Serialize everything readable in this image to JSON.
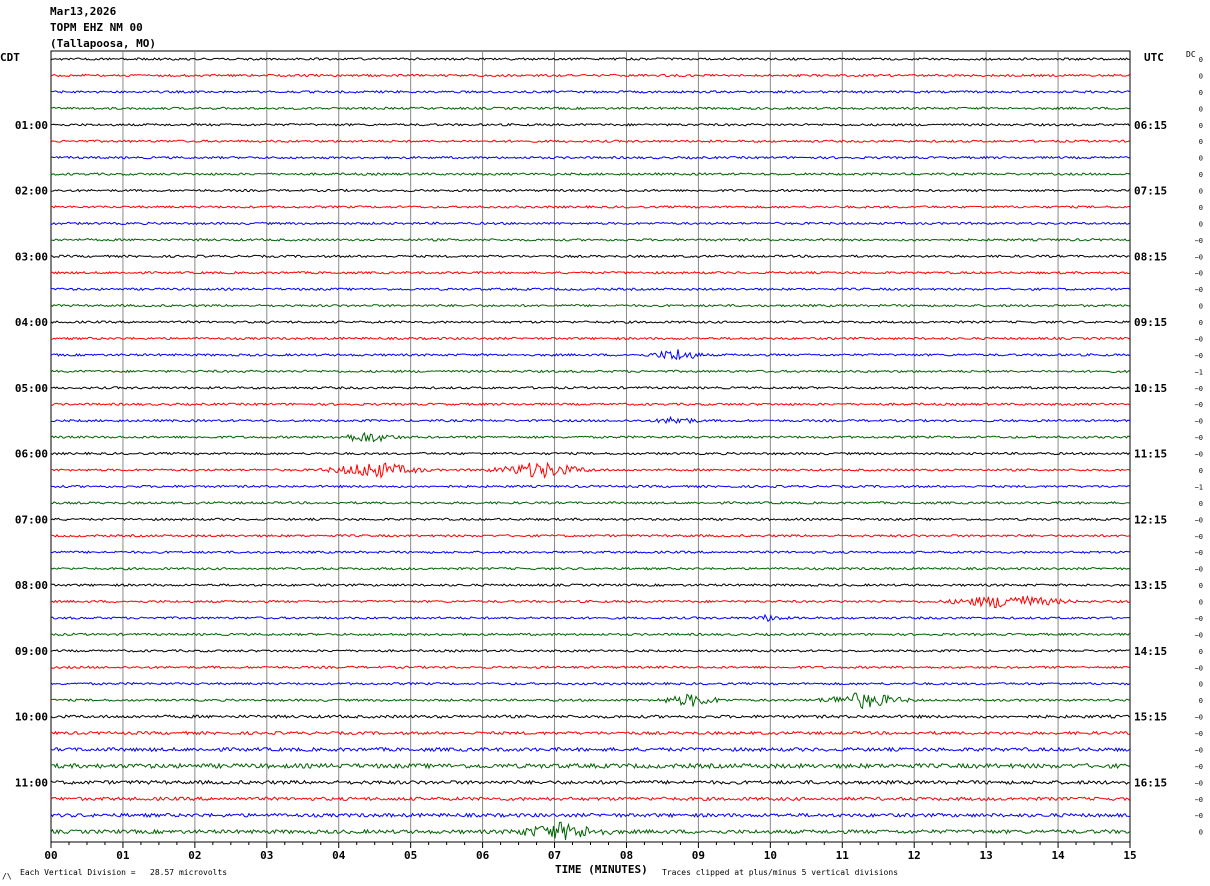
{
  "header": {
    "date": "Mar13,2026",
    "station": "TOPM EHZ NM 00",
    "location": "(Tallapoosa, MO)"
  },
  "left_tz": "CDT",
  "right_tz": "UTC",
  "dc_label": "DC",
  "footer": {
    "scale": "Each Vertical Division =   28.57 microvolts",
    "clip": "Traces clipped at plus/minus 5 vertical divisions",
    "corner": "/\\"
  },
  "colors": {
    "black": "#000000",
    "red": "#ff0000",
    "blue": "#0000ff",
    "green": "#006400"
  },
  "chart_data": {
    "type": "line",
    "title": "TOPM EHZ NM 00",
    "xlabel": "TIME (MINUTES)",
    "ylabel": "",
    "x_ticks": [
      "00",
      "01",
      "02",
      "03",
      "04",
      "05",
      "06",
      "07",
      "08",
      "09",
      "10",
      "11",
      "12",
      "13",
      "14",
      "15"
    ],
    "xlim": [
      0,
      15
    ],
    "trace_count": 48,
    "trace_minutes": 15,
    "trace_color_cycle": [
      "black",
      "red",
      "blue",
      "green"
    ],
    "left_time_labels": [
      {
        "trace": 4,
        "label": "01:00"
      },
      {
        "trace": 8,
        "label": "02:00"
      },
      {
        "trace": 12,
        "label": "03:00"
      },
      {
        "trace": 16,
        "label": "04:00"
      },
      {
        "trace": 20,
        "label": "05:00"
      },
      {
        "trace": 24,
        "label": "06:00"
      },
      {
        "trace": 28,
        "label": "07:00"
      },
      {
        "trace": 32,
        "label": "08:00"
      },
      {
        "trace": 36,
        "label": "09:00"
      },
      {
        "trace": 40,
        "label": "10:00"
      },
      {
        "trace": 44,
        "label": "11:00"
      }
    ],
    "right_time_labels": [
      {
        "trace": 4,
        "label": "06:15"
      },
      {
        "trace": 8,
        "label": "07:15"
      },
      {
        "trace": 12,
        "label": "08:15"
      },
      {
        "trace": 16,
        "label": "09:15"
      },
      {
        "trace": 20,
        "label": "10:15"
      },
      {
        "trace": 24,
        "label": "11:15"
      },
      {
        "trace": 28,
        "label": "12:15"
      },
      {
        "trace": 32,
        "label": "13:15"
      },
      {
        "trace": 36,
        "label": "14:15"
      },
      {
        "trace": 40,
        "label": "15:15"
      },
      {
        "trace": 44,
        "label": "16:15"
      }
    ],
    "dc_offsets": [
      "0",
      "0",
      "0",
      "0",
      "0",
      "0",
      "0",
      "0",
      "0",
      "0",
      "0",
      "−0",
      "−0",
      "−0",
      "−0",
      "0",
      "0",
      "−0",
      "−0",
      "−1",
      "−0",
      "−0",
      "−0",
      "−0",
      "−0",
      "0",
      "−1",
      "0",
      "−0",
      "−0",
      "−0",
      "−0",
      "0",
      "0",
      "−0",
      "−0",
      "0",
      "−0",
      "0",
      "0",
      "−0",
      "−0",
      "−0",
      "−0",
      "−0",
      "−0",
      "−0",
      "0"
    ],
    "noise_levels": [
      1.0,
      1.0,
      1.0,
      1.0,
      1.0,
      1.0,
      1.0,
      1.0,
      1.0,
      1.0,
      1.0,
      1.0,
      1.0,
      1.0,
      1.0,
      1.0,
      1.0,
      1.0,
      1.0,
      1.0,
      1.0,
      1.0,
      1.0,
      1.0,
      1.0,
      1.0,
      1.0,
      1.0,
      1.0,
      1.0,
      1.0,
      1.0,
      1.0,
      1.0,
      1.0,
      1.0,
      1.0,
      1.0,
      1.0,
      1.0,
      1.3,
      1.3,
      1.6,
      2.0,
      1.6,
      1.5,
      1.6,
      1.7
    ],
    "events": [
      {
        "trace": 18,
        "minute": 8.7,
        "amp": 6,
        "dur": 0.5
      },
      {
        "trace": 22,
        "minute": 8.7,
        "amp": 4,
        "dur": 0.4
      },
      {
        "trace": 23,
        "minute": 4.4,
        "amp": 5,
        "dur": 0.6
      },
      {
        "trace": 25,
        "minute": 4.5,
        "amp": 8,
        "dur": 0.9
      },
      {
        "trace": 25,
        "minute": 6.8,
        "amp": 8,
        "dur": 0.9
      },
      {
        "trace": 33,
        "minute": 13.3,
        "amp": 7,
        "dur": 1.1
      },
      {
        "trace": 34,
        "minute": 10.0,
        "amp": 3,
        "dur": 0.3
      },
      {
        "trace": 39,
        "minute": 8.9,
        "amp": 6,
        "dur": 0.6
      },
      {
        "trace": 39,
        "minute": 11.3,
        "amp": 8,
        "dur": 0.8
      },
      {
        "trace": 47,
        "minute": 7.1,
        "amp": 8,
        "dur": 0.9
      }
    ]
  }
}
